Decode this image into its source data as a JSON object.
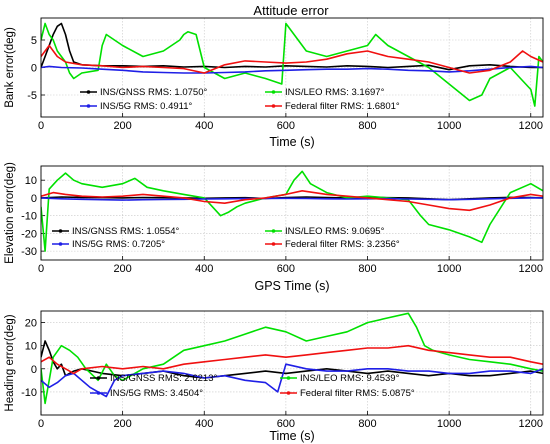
{
  "figure": {
    "title": "Attitude error",
    "colors": {
      "black": "#000000",
      "green": "#00e000",
      "blue": "#1f1fe6",
      "red": "#f01010"
    }
  },
  "chart_data": [
    {
      "type": "line",
      "ylabel": "Bank error(deg)",
      "xlabel": "Time (s)",
      "xlim": [
        0,
        1230
      ],
      "ylim": [
        -9,
        9
      ],
      "xticks": [
        0,
        200,
        400,
        600,
        800,
        1000,
        1200
      ],
      "yticks": [
        -5,
        0,
        5
      ],
      "grid": true,
      "legend_position": "bottom-center",
      "series": [
        {
          "name": "INS/GNSS RMS: 1.0750°",
          "color": "#000000",
          "x": [
            0,
            10,
            20,
            30,
            40,
            50,
            60,
            70,
            80,
            100,
            150,
            200,
            250,
            300,
            350,
            400,
            450,
            500,
            550,
            600,
            650,
            700,
            750,
            800,
            850,
            900,
            950,
            1000,
            1050,
            1100,
            1150,
            1200,
            1230
          ],
          "y": [
            0,
            2,
            4,
            6,
            7.5,
            8,
            6,
            3,
            1,
            0.5,
            0.3,
            0.3,
            0.2,
            0.3,
            0.1,
            0.2,
            0,
            0.2,
            0.1,
            0.3,
            0.2,
            0.1,
            0.3,
            0.2,
            0,
            0.2,
            0.4,
            -0.4,
            0.3,
            0.5,
            0.2,
            0,
            0
          ]
        },
        {
          "name": "INS/LEO RMS: 3.1697°",
          "color": "#00e000",
          "x": [
            0,
            10,
            20,
            30,
            40,
            50,
            60,
            70,
            80,
            100,
            140,
            150,
            160,
            200,
            250,
            300,
            320,
            340,
            350,
            360,
            380,
            400,
            450,
            500,
            550,
            590,
            600,
            650,
            700,
            750,
            800,
            810,
            820,
            850,
            900,
            950,
            1000,
            1050,
            1080,
            1100,
            1150,
            1200,
            1210,
            1220,
            1230
          ],
          "y": [
            5,
            8,
            6,
            5,
            3,
            2,
            1,
            -1,
            -2,
            -1,
            -0.5,
            4,
            6,
            4,
            2,
            3,
            4,
            5,
            6,
            6.5,
            6,
            0,
            -2,
            -1,
            -2,
            -3,
            8,
            3,
            2,
            3,
            4,
            5,
            6,
            4,
            2,
            0,
            -3,
            -6,
            -5,
            -2,
            0,
            -4,
            -7,
            2,
            1
          ]
        },
        {
          "name": "INS/5G RMS: 0.4911°",
          "color": "#1f1fe6",
          "x": [
            0,
            20,
            50,
            100,
            150,
            200,
            250,
            300,
            350,
            400,
            450,
            500,
            550,
            600,
            650,
            700,
            750,
            800,
            850,
            900,
            950,
            1000,
            1050,
            1100,
            1150,
            1200,
            1230
          ],
          "y": [
            0,
            0.2,
            0,
            -0.1,
            -0.3,
            -0.5,
            -0.8,
            -0.9,
            -1,
            -1,
            -0.9,
            -0.8,
            -0.6,
            -0.5,
            -0.4,
            -0.3,
            -0.3,
            -0.2,
            -0.3,
            -0.5,
            -0.6,
            -0.8,
            -0.6,
            -0.3,
            0,
            0.2,
            0
          ]
        },
        {
          "name": "Federal filter RMS: 1.6801°",
          "color": "#f01010",
          "x": [
            0,
            20,
            40,
            60,
            100,
            150,
            200,
            250,
            300,
            350,
            400,
            450,
            500,
            550,
            600,
            650,
            700,
            750,
            800,
            850,
            900,
            950,
            1000,
            1050,
            1100,
            1150,
            1180,
            1200,
            1230
          ],
          "y": [
            2,
            4,
            2,
            1,
            0.5,
            0.3,
            0,
            0.2,
            0,
            -0.2,
            -1,
            0.5,
            1.2,
            1,
            0.8,
            1,
            1.5,
            2.5,
            3,
            2,
            1.5,
            1,
            0,
            -1,
            -0.5,
            1,
            3,
            2,
            1
          ]
        }
      ]
    },
    {
      "type": "line",
      "ylabel": "Elevation error(deg)",
      "xlabel": "GPS Time (s)",
      "xlim": [
        0,
        1230
      ],
      "ylim": [
        -35,
        18
      ],
      "xticks": [
        0,
        200,
        400,
        600,
        800,
        1000,
        1200
      ],
      "yticks": [
        -30,
        -20,
        -10,
        0,
        10
      ],
      "grid": true,
      "legend_position": "bottom-center",
      "series": [
        {
          "name": "INS/GNSS RMS: 1.0554°",
          "color": "#000000",
          "x": [
            0,
            50,
            100,
            150,
            200,
            250,
            300,
            350,
            400,
            450,
            500,
            550,
            600,
            650,
            700,
            750,
            800,
            850,
            900,
            950,
            1000,
            1050,
            1100,
            1150,
            1200,
            1230
          ],
          "y": [
            0,
            0.5,
            0.3,
            0.2,
            0,
            0.2,
            0.1,
            0,
            -0.2,
            0,
            0.1,
            -0.3,
            0.2,
            0.5,
            0.2,
            0,
            0.3,
            0.1,
            0,
            -0.5,
            -1,
            -0.5,
            0,
            0.3,
            0.2,
            0
          ]
        },
        {
          "name": "INS/LEO RMS: 9.0695°",
          "color": "#00e000",
          "x": [
            0,
            10,
            20,
            40,
            60,
            80,
            100,
            150,
            200,
            230,
            260,
            300,
            350,
            400,
            440,
            460,
            480,
            500,
            550,
            600,
            620,
            640,
            660,
            700,
            750,
            800,
            850,
            900,
            930,
            950,
            1000,
            1050,
            1080,
            1100,
            1150,
            1200,
            1230
          ],
          "y": [
            -5,
            -30,
            5,
            10,
            14,
            10,
            8,
            6,
            8,
            11,
            6,
            4,
            2,
            0,
            -10,
            -8,
            -5,
            -3,
            0,
            2,
            10,
            15,
            8,
            3,
            0,
            1,
            0,
            -1,
            -10,
            -15,
            -18,
            -22,
            -25,
            -15,
            3,
            8,
            4
          ]
        },
        {
          "name": "INS/5G RMS: 0.7205°",
          "color": "#1f1fe6",
          "x": [
            0,
            50,
            100,
            150,
            200,
            250,
            300,
            350,
            400,
            450,
            500,
            550,
            600,
            650,
            700,
            750,
            800,
            850,
            900,
            950,
            1000,
            1050,
            1100,
            1150,
            1200,
            1230
          ],
          "y": [
            0,
            -0.5,
            -0.8,
            -1,
            -1.2,
            -1,
            -0.9,
            -0.8,
            -0.6,
            -0.5,
            -0.4,
            -0.3,
            -0.2,
            -0.3,
            -0.5,
            -0.6,
            -0.5,
            -0.4,
            -0.6,
            -0.8,
            -1,
            -0.8,
            -0.5,
            -0.2,
            0,
            0
          ]
        },
        {
          "name": "Federal filter RMS: 3.2356°",
          "color": "#f01010",
          "x": [
            0,
            30,
            60,
            100,
            150,
            200,
            250,
            300,
            350,
            400,
            450,
            500,
            550,
            600,
            640,
            700,
            750,
            800,
            850,
            900,
            950,
            1000,
            1050,
            1100,
            1150,
            1200,
            1230
          ],
          "y": [
            1,
            3,
            2,
            1,
            0.5,
            1,
            2,
            1,
            0,
            -2,
            -3,
            -1,
            0,
            2,
            4,
            2,
            1,
            0,
            -1,
            -2,
            -4,
            -6,
            -7,
            -4,
            0,
            2,
            1
          ]
        }
      ]
    },
    {
      "type": "line",
      "ylabel": "Heading error(deg)",
      "xlabel": "Time (s)",
      "xlim": [
        0,
        1230
      ],
      "ylim": [
        -20,
        25
      ],
      "xticks": [
        0,
        200,
        400,
        600,
        800,
        1000,
        1200
      ],
      "yticks": [
        -10,
        0,
        10,
        20
      ],
      "grid": true,
      "legend_position": "bottom-center",
      "series": [
        {
          "name": "INS/GNSS RMS: 2.6213°",
          "color": "#000000",
          "x": [
            0,
            10,
            20,
            30,
            40,
            50,
            60,
            80,
            100,
            150,
            200,
            250,
            300,
            350,
            400,
            450,
            500,
            550,
            600,
            650,
            700,
            750,
            800,
            850,
            900,
            950,
            1000,
            1050,
            1100,
            1150,
            1200,
            1230
          ],
          "y": [
            5,
            12,
            8,
            3,
            0,
            2,
            -3,
            -1,
            0,
            -2,
            -3,
            -2,
            -1,
            -3,
            -4,
            -3,
            -2,
            -1,
            -2,
            -1,
            0,
            -1,
            -2,
            -1,
            -2,
            -3,
            -2,
            -3,
            -3,
            -2,
            -1,
            -2
          ]
        },
        {
          "name": "INS/LEO RMS: 9.4539°",
          "color": "#00e000",
          "x": [
            0,
            10,
            20,
            30,
            50,
            70,
            90,
            110,
            140,
            160,
            180,
            200,
            250,
            300,
            350,
            400,
            450,
            500,
            550,
            600,
            650,
            700,
            750,
            800,
            850,
            900,
            920,
            940,
            960,
            1000,
            1050,
            1100,
            1150,
            1200,
            1230
          ],
          "y": [
            0,
            -15,
            -5,
            5,
            10,
            8,
            5,
            0,
            -5,
            2,
            -3,
            -5,
            0,
            2,
            8,
            10,
            12,
            15,
            18,
            16,
            12,
            14,
            16,
            20,
            22,
            24,
            18,
            10,
            8,
            6,
            4,
            3,
            2,
            0,
            -1
          ]
        },
        {
          "name": "INS/5G RMS: 3.4504°",
          "color": "#1f1fe6",
          "x": [
            0,
            20,
            40,
            60,
            80,
            100,
            120,
            140,
            160,
            180,
            200,
            250,
            300,
            350,
            400,
            450,
            500,
            550,
            580,
            600,
            650,
            700,
            750,
            800,
            850,
            900,
            950,
            1000,
            1050,
            1100,
            1150,
            1200,
            1230
          ],
          "y": [
            -5,
            -8,
            -6,
            -3,
            -2,
            -5,
            -8,
            -10,
            -12,
            -5,
            -3,
            -2,
            -1,
            -2,
            -4,
            -3,
            -5,
            -6,
            -10,
            2,
            0,
            -1,
            -1,
            0,
            0,
            -1,
            -1,
            -2,
            -2,
            -1,
            -1,
            -2,
            0
          ]
        },
        {
          "name": "Federal filter RMS: 5.0875°",
          "color": "#f01010",
          "x": [
            0,
            20,
            40,
            60,
            80,
            100,
            150,
            200,
            250,
            300,
            350,
            400,
            450,
            500,
            550,
            600,
            650,
            700,
            750,
            800,
            850,
            900,
            950,
            1000,
            1050,
            1100,
            1150,
            1200,
            1230
          ],
          "y": [
            3,
            5,
            2,
            0,
            -2,
            0,
            1,
            0,
            1,
            0,
            2,
            3,
            4,
            5,
            6,
            5,
            6,
            7,
            8,
            9,
            9,
            10,
            8,
            7,
            6,
            5,
            5,
            3,
            2
          ]
        }
      ]
    }
  ]
}
